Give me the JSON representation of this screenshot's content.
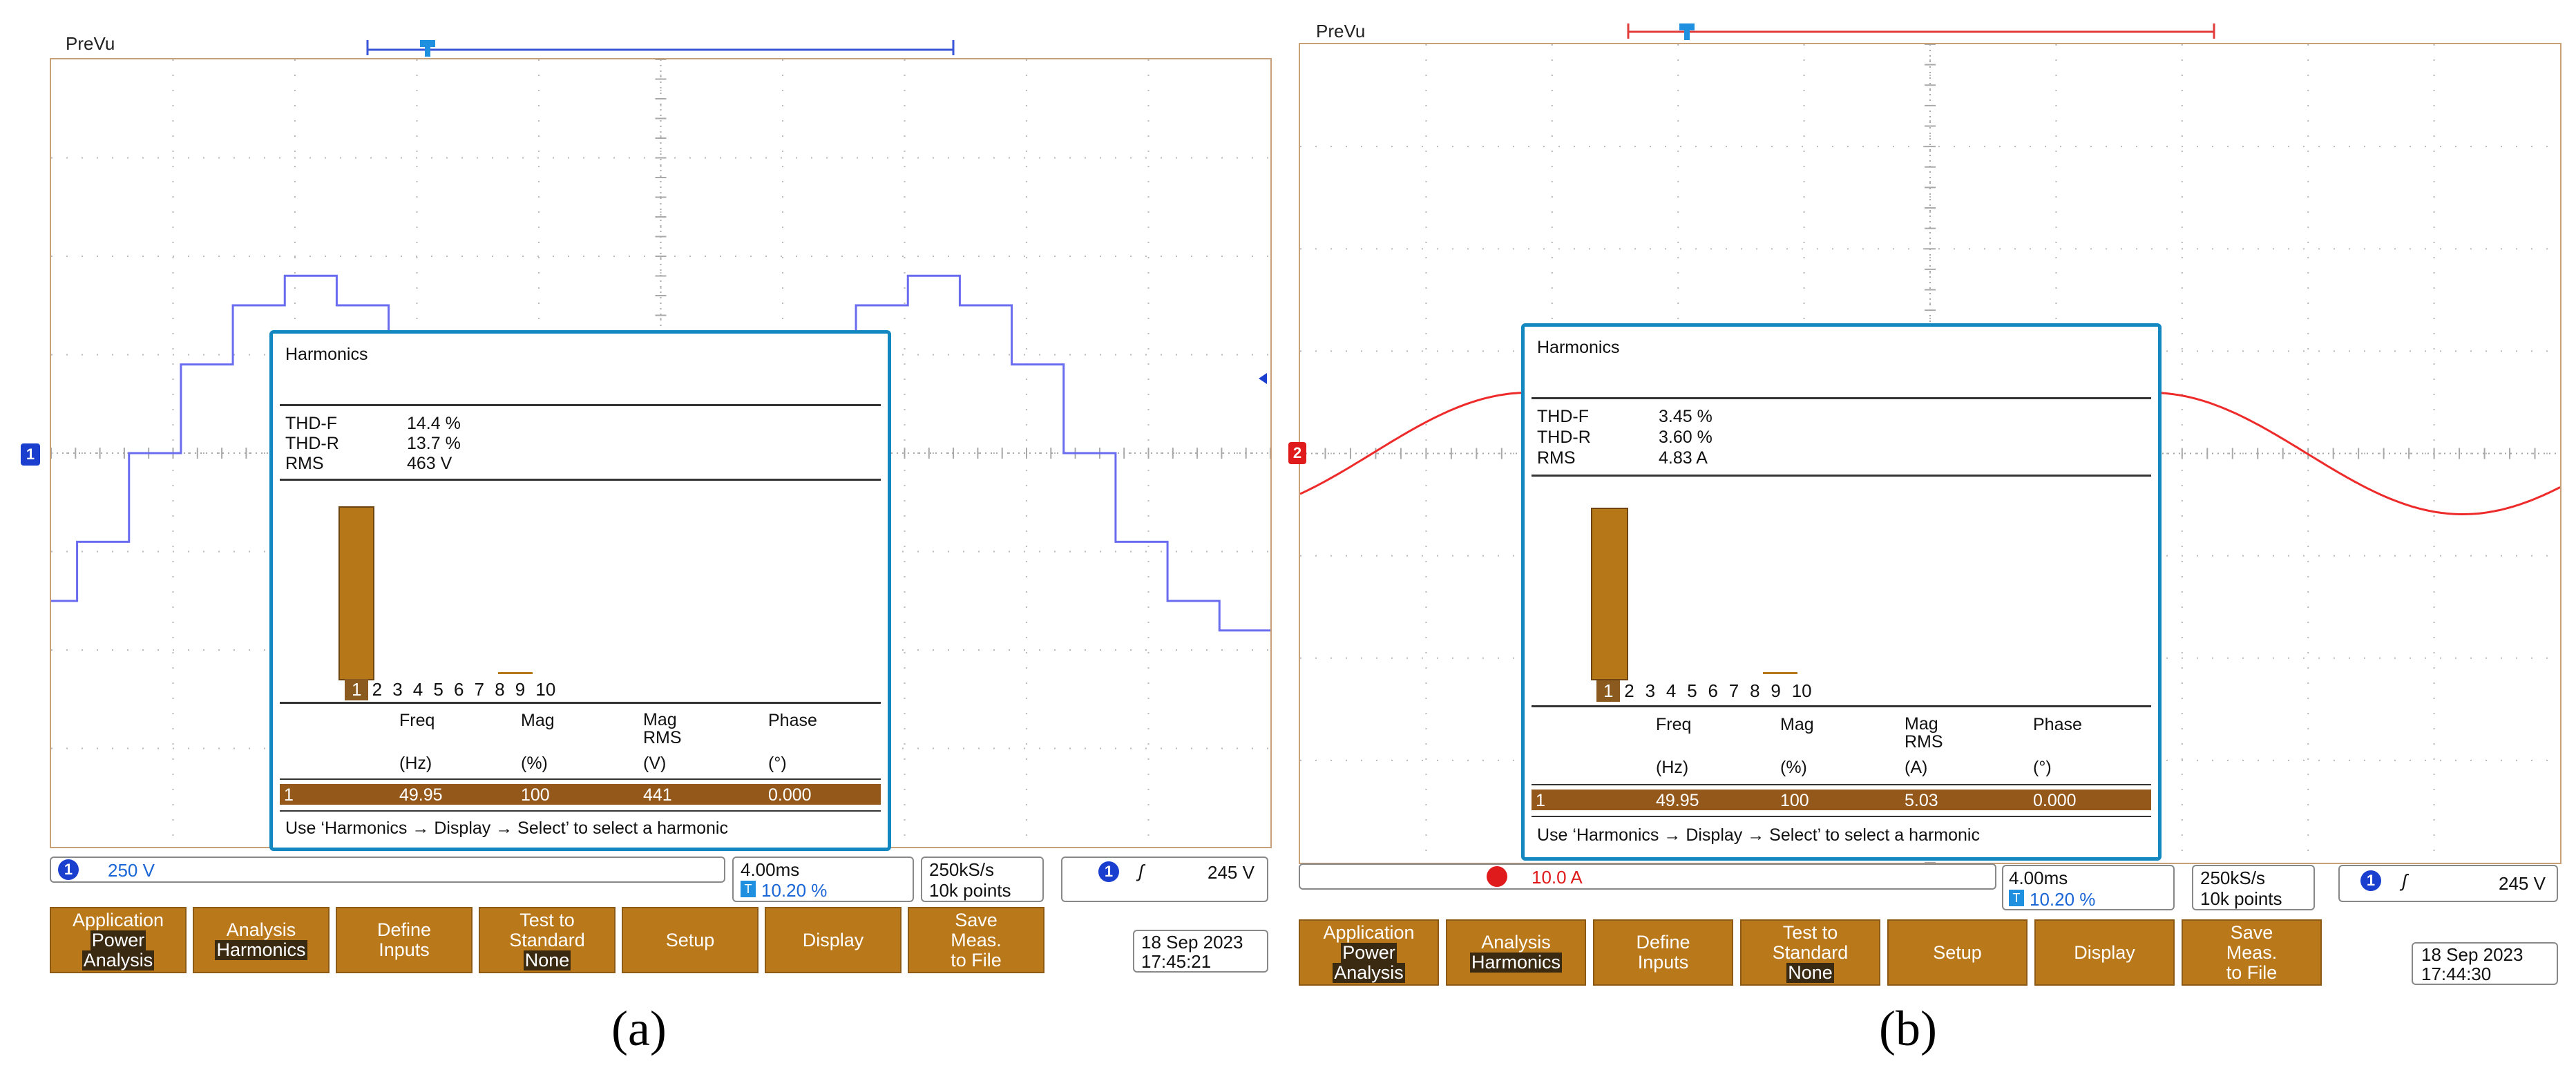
{
  "panels": [
    {
      "id": "a",
      "prevu_label": "PreVu",
      "channel_marker": "1",
      "dialog": {
        "title": "Harmonics",
        "thd_f_label": "THD-F",
        "thd_f_value": "14.4 %",
        "thd_r_label": "THD-R",
        "thd_r_value": "13.7 %",
        "rms_label": "RMS",
        "rms_value": "463 V",
        "harmonic_numbers": [
          "1",
          "2",
          "3",
          "4",
          "5",
          "6",
          "7",
          "8",
          "9",
          "10"
        ],
        "col_freq": "Freq",
        "col_mag": "Mag",
        "col_magrms": "Mag RMS",
        "col_phase": "Phase",
        "unit_freq": "(Hz)",
        "unit_mag": "(%)",
        "unit_magrms": "(V)",
        "unit_phase": "(°)",
        "row": {
          "n": "1",
          "freq": "49.95",
          "mag": "100",
          "magrms": "441",
          "phase": "0.000"
        },
        "hint": "Use ‘Harmonics → Display → Select’ to select a harmonic"
      },
      "status": {
        "ch_badge": "1",
        "ch_scale": "250 V",
        "timebase": "4.00ms",
        "trig_pos": "10.20 %",
        "rate": "250kS/s",
        "points": "10k points",
        "trig_badge": "1",
        "trig_level": "245 V"
      },
      "buttons": [
        {
          "line1": "Application",
          "line2": "Power",
          "line3": "Analysis"
        },
        {
          "line1": "Analysis",
          "line2": "Harmonics",
          "line3": ""
        },
        {
          "line1": "Define",
          "line2": "Inputs",
          "line3": ""
        },
        {
          "line1": "Test to",
          "line2": "Standard",
          "line3": "None"
        },
        {
          "line1": "Setup",
          "line2": "",
          "line3": ""
        },
        {
          "line1": "Display",
          "line2": "",
          "line3": ""
        },
        {
          "line1": "Save",
          "line2": "Meas.",
          "line3": "to File"
        }
      ],
      "date": "18 Sep  2023",
      "time": "17:45:21",
      "caption": "(a)",
      "trace_color": "#6a6cf0"
    },
    {
      "id": "b",
      "prevu_label": "PreVu",
      "channel_marker": "2",
      "dialog": {
        "title": "Harmonics",
        "thd_f_label": "THD-F",
        "thd_f_value": "3.45 %",
        "thd_r_label": "THD-R",
        "thd_r_value": "3.60 %",
        "rms_label": "RMS",
        "rms_value": "4.83 A",
        "harmonic_numbers": [
          "1",
          "2",
          "3",
          "4",
          "5",
          "6",
          "7",
          "8",
          "9",
          "10"
        ],
        "col_freq": "Freq",
        "col_mag": "Mag",
        "col_magrms": "Mag RMS",
        "col_phase": "Phase",
        "unit_freq": "(Hz)",
        "unit_mag": "(%)",
        "unit_magrms": "(A)",
        "unit_phase": "(°)",
        "row": {
          "n": "1",
          "freq": "49.95",
          "mag": "100",
          "magrms": "5.03",
          "phase": "0.000"
        },
        "hint": "Use ‘Harmonics → Display → Select’ to select a harmonic"
      },
      "status": {
        "ch_badge": "2",
        "ch_scale": "10.0 A",
        "timebase": "4.00ms",
        "trig_pos": "10.20 %",
        "rate": "250kS/s",
        "points": "10k points",
        "trig_badge": "1",
        "trig_level": "245 V"
      },
      "buttons": [
        {
          "line1": "Application",
          "line2": "Power",
          "line3": "Analysis"
        },
        {
          "line1": "Analysis",
          "line2": "Harmonics",
          "line3": ""
        },
        {
          "line1": "Define",
          "line2": "Inputs",
          "line3": ""
        },
        {
          "line1": "Test to",
          "line2": "Standard",
          "line3": "None"
        },
        {
          "line1": "Setup",
          "line2": "",
          "line3": ""
        },
        {
          "line1": "Display",
          "line2": "",
          "line3": ""
        },
        {
          "line1": "Save",
          "line2": "Meas.",
          "line3": "to File"
        }
      ],
      "date": "18 Sep  2023",
      "time": "17:44:30",
      "caption": "(b)",
      "trace_color": "#ee2b2b"
    }
  ]
}
